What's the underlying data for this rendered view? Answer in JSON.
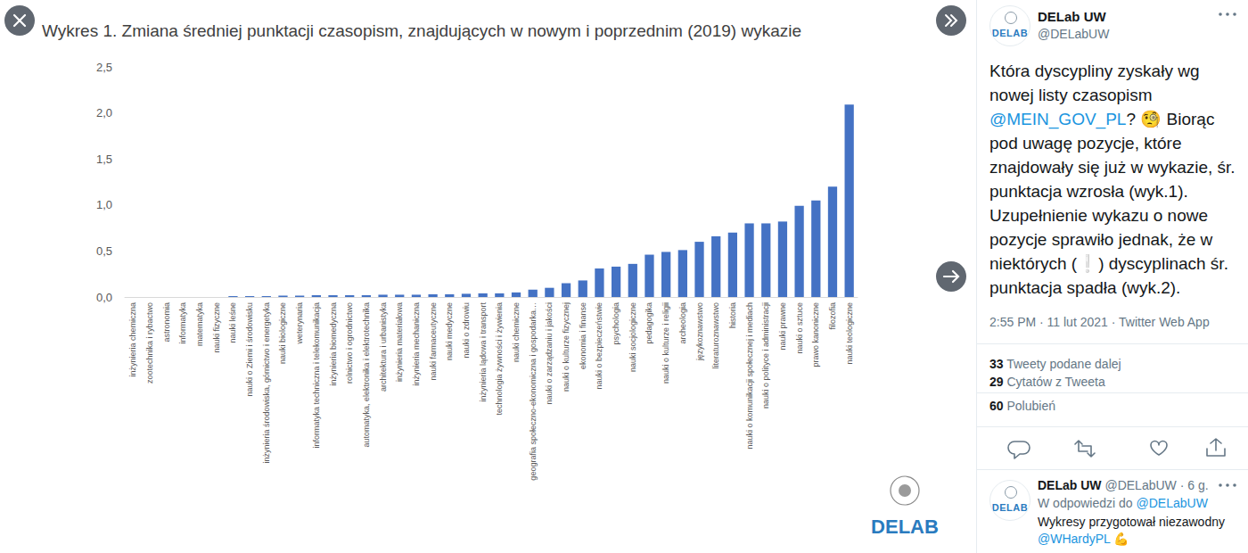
{
  "chart_data": {
    "type": "bar",
    "title": "Wykres 1. Zmiana średniej punktacji czasopism, znajdujących w nowym i poprzednim (2019) wykazie",
    "categories": [
      "inżynieria chemiczna",
      "zootechnika i rybactwo",
      "astronomia",
      "informatyka",
      "matematyka",
      "nauki fizyczne",
      "nauki leśne",
      "nauki o Ziemi i środowisku",
      "inżynieria środowiska, górnictwo i energetyka",
      "nauki biologiczne",
      "weterynaria",
      "informatyka techniczna i telekomunikacja",
      "inżynieria biomedyczna",
      "rolnictwo i ogrodnictwo",
      "automatyka, elektronika i elektrotechnika",
      "architektura i urbanistyka",
      "inżynieria materiałowa",
      "inżynieria mechaniczna",
      "nauki farmaceutyczne",
      "nauki medyczne",
      "nauki o zdrowiu",
      "inżynieria lądowa i transport",
      "technologia żywności i żywienia",
      "nauki chemiczne",
      "geografia społeczno-ekonomiczna i gospodarka…",
      "nauki o zarządzaniu i jakości",
      "nauki o kulturze fizycznej",
      "ekonomia i finanse",
      "nauki o bezpieczeństwie",
      "psychologia",
      "nauki socjologiczne",
      "pedagogika",
      "nauki o kulturze i religii",
      "archeologia",
      "językoznawstwo",
      "literaturoznawstwo",
      "historia",
      "nauki o komunikacji społecznej i mediach",
      "nauki o polityce i administracji",
      "nauki prawne",
      "nauki o sztuce",
      "prawo kanoniczne",
      "filozofia",
      "nauki teologiczne"
    ],
    "values": [
      0,
      0,
      0,
      0,
      0,
      0,
      0.01,
      0.01,
      0.01,
      0.015,
      0.015,
      0.02,
      0.02,
      0.02,
      0.02,
      0.025,
      0.025,
      0.025,
      0.03,
      0.03,
      0.035,
      0.04,
      0.04,
      0.05,
      0.08,
      0.1,
      0.15,
      0.18,
      0.31,
      0.33,
      0.36,
      0.46,
      0.49,
      0.51,
      0.6,
      0.66,
      0.7,
      0.8,
      0.8,
      0.82,
      0.99,
      1.05,
      1.2,
      2.09
    ],
    "color": "#4472c4",
    "ylim": [
      0,
      2.5
    ],
    "yticks": [
      {
        "value": 0,
        "label": "0,0"
      },
      {
        "value": 0.5,
        "label": "0,5"
      },
      {
        "value": 1,
        "label": "1,0"
      },
      {
        "value": 1.5,
        "label": "1,5"
      },
      {
        "value": 2,
        "label": "2,0"
      },
      {
        "value": 2.5,
        "label": "2,5"
      }
    ],
    "grid": false
  },
  "logo": "DELAB",
  "tweet": {
    "author": "DELab UW",
    "handle": "@DELabUW",
    "text": [
      {
        "text": "Która dyscypliny zyskały wg nowej listy czasopism "
      },
      {
        "text": "@MEIN_GOV_PL",
        "link": true
      },
      {
        "text": "? 🧐 Biorąc pod uwagę pozycje, które znajdowały się już w wykazie, śr. punktacja wzrosła (wyk.1). Uzupełnienie wykazu o nowe pozycje sprawiło jednak, że w niektórych (❕) dyscyplinach śr. punktacja spadła (wyk.2)."
      }
    ],
    "meta": "2:55 PM · 11 lut 2021 · Twitter Web App",
    "stats": [
      {
        "count": 33,
        "label": "Tweety podane dalej"
      },
      {
        "count": 29,
        "label": "Cytatów z Tweeta"
      }
    ],
    "likes": {
      "count": 60,
      "label": "Polubień"
    }
  },
  "reply": {
    "author": "DELab UW",
    "handle_time": "@DELabUW · 6 g.",
    "context": [
      {
        "text": "W odpowiedzi do "
      },
      {
        "text": "@DELabUW",
        "link": true
      }
    ],
    "text": [
      {
        "text": "Wykresy przygotował niezawodny "
      },
      {
        "text": "@WHardyPL",
        "link": true
      },
      {
        "text": " 💪"
      }
    ]
  }
}
